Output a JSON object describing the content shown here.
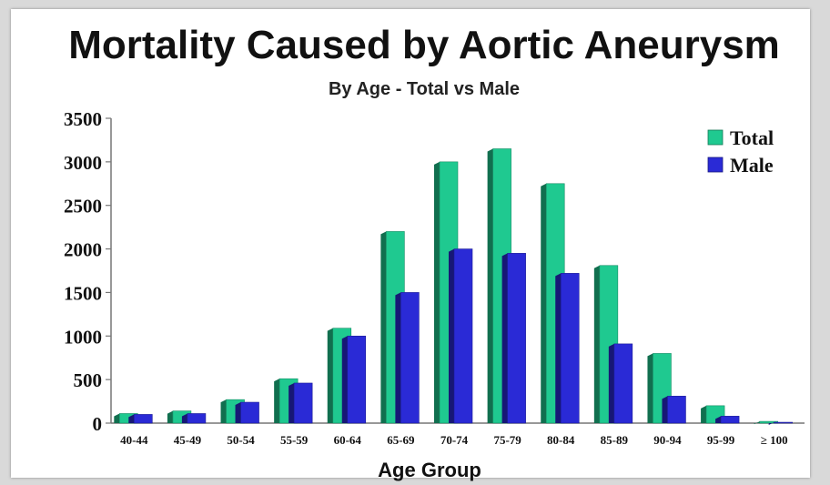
{
  "chart_data": {
    "type": "bar",
    "title": "Mortality Caused by Aortic Aneurysm",
    "subtitle": "By Age - Total vs Male",
    "xlabel": "Age Group",
    "ylabel": "",
    "ylim": [
      0,
      3500
    ],
    "yticks": [
      "0",
      "500",
      "1000",
      "1500",
      "2000",
      "2500",
      "3000",
      "3500"
    ],
    "categories": [
      "40-44",
      "45-49",
      "50-54",
      "55-59",
      "60-64",
      "65-69",
      "70-74",
      "75-79",
      "80-84",
      "85-89",
      "90-94",
      "95-99",
      "≥ 100"
    ],
    "series": [
      {
        "name": "Total",
        "color": "#1fc990",
        "values": [
          110,
          140,
          270,
          510,
          1090,
          2200,
          3000,
          3150,
          2750,
          1810,
          800,
          200,
          20
        ]
      },
      {
        "name": "Male",
        "color": "#2a2ad6",
        "values": [
          100,
          110,
          240,
          460,
          1000,
          1500,
          2000,
          1950,
          1720,
          910,
          310,
          80,
          10
        ]
      }
    ],
    "legend": "top-right",
    "grid": false
  }
}
